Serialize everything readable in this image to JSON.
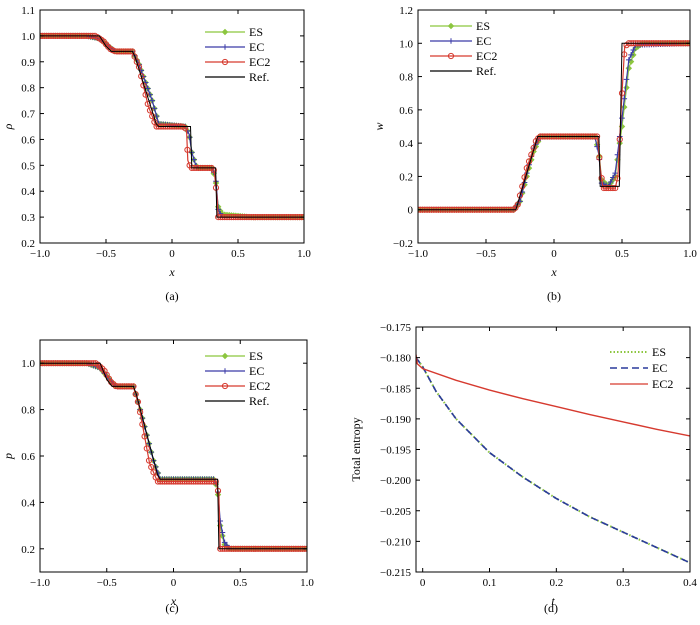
{
  "chart_data": [
    {
      "type": "line",
      "panel_label": "(a)",
      "xlabel": "x",
      "ylabel": "ρ",
      "xlim": [
        -1.0,
        1.0
      ],
      "ylim": [
        0.2,
        1.1
      ],
      "xticks": [
        -1.0,
        -0.5,
        0,
        0.5,
        1.0
      ],
      "xtick_labels": [
        "−1.0",
        "−0.5",
        "0",
        "0.5",
        "1.0"
      ],
      "yticks": [
        0.2,
        0.3,
        0.4,
        0.5,
        0.6,
        0.7,
        0.8,
        0.9,
        1.0,
        1.1
      ],
      "ytick_labels": [
        "0.2",
        "0.3",
        "0.4",
        "0.5",
        "0.6",
        "0.7",
        "0.8",
        "0.9",
        "1.0",
        "1.1"
      ],
      "legend_position": "top-right",
      "series": [
        {
          "name": "ES",
          "color": "#8cc63f",
          "marker": "diamond",
          "x": [
            -1.0,
            -0.65,
            -0.55,
            -0.48,
            -0.43,
            -0.3,
            -0.25,
            -0.15,
            -0.1,
            0.1,
            0.13,
            0.15,
            0.18,
            0.2,
            0.22,
            0.24,
            0.3,
            0.33,
            0.35,
            0.38,
            0.6,
            1.0
          ],
          "y": [
            1.0,
            1.0,
            0.99,
            0.96,
            0.94,
            0.94,
            0.89,
            0.75,
            0.66,
            0.65,
            0.62,
            0.55,
            0.5,
            0.49,
            0.49,
            0.49,
            0.49,
            0.45,
            0.34,
            0.31,
            0.3,
            0.3
          ]
        },
        {
          "name": "EC",
          "color": "#3a3aa8",
          "marker": "plus",
          "x": [
            -1.0,
            -0.65,
            -0.55,
            -0.48,
            -0.43,
            -0.3,
            -0.25,
            -0.15,
            -0.1,
            0.1,
            0.13,
            0.15,
            0.18,
            0.2,
            0.22,
            0.24,
            0.3,
            0.33,
            0.35,
            0.38,
            0.6,
            1.0
          ],
          "y": [
            1.0,
            1.0,
            0.99,
            0.96,
            0.94,
            0.94,
            0.89,
            0.75,
            0.66,
            0.65,
            0.62,
            0.55,
            0.5,
            0.49,
            0.49,
            0.49,
            0.49,
            0.46,
            0.33,
            0.3,
            0.3,
            0.3
          ]
        },
        {
          "name": "EC2",
          "color": "#d63a2f",
          "marker": "circle",
          "x": [
            -1.0,
            -0.58,
            -0.52,
            -0.47,
            -0.43,
            -0.3,
            -0.25,
            -0.18,
            -0.12,
            0.08,
            0.11,
            0.12,
            0.14,
            0.2,
            0.24,
            0.3,
            0.32,
            0.34,
            0.35,
            0.6,
            1.0
          ],
          "y": [
            1.0,
            1.0,
            0.98,
            0.95,
            0.94,
            0.94,
            0.88,
            0.73,
            0.65,
            0.65,
            0.64,
            0.52,
            0.49,
            0.49,
            0.49,
            0.49,
            0.48,
            0.38,
            0.3,
            0.3,
            0.3
          ]
        },
        {
          "name": "Ref.",
          "color": "#000000",
          "marker": "none",
          "x": [
            -1.0,
            -0.55,
            -0.5,
            -0.46,
            -0.3,
            -0.28,
            -0.12,
            -0.1,
            0.14,
            0.15,
            0.33,
            0.34,
            1.0
          ],
          "y": [
            1.0,
            1.0,
            0.96,
            0.94,
            0.94,
            0.92,
            0.66,
            0.65,
            0.65,
            0.49,
            0.49,
            0.3,
            0.3
          ]
        }
      ]
    },
    {
      "type": "line",
      "panel_label": "(b)",
      "xlabel": "x",
      "ylabel": "w",
      "xlim": [
        -1.0,
        1.0
      ],
      "ylim": [
        -0.2,
        1.2
      ],
      "xticks": [
        -1.0,
        -0.5,
        0,
        0.5,
        1.0
      ],
      "xtick_labels": [
        "−1.0",
        "−0.5",
        "0",
        "0.5",
        "1.0"
      ],
      "yticks": [
        -0.2,
        0,
        0.2,
        0.4,
        0.6,
        0.8,
        1.0,
        1.2
      ],
      "ytick_labels": [
        "−0.2",
        "0",
        "0.2",
        "0.4",
        "0.6",
        "0.8",
        "1.0",
        "1.2"
      ],
      "legend_position": "top-left",
      "series": [
        {
          "name": "ES",
          "color": "#8cc63f",
          "marker": "diamond",
          "x": [
            -1.0,
            -0.3,
            -0.25,
            -0.2,
            -0.15,
            -0.1,
            0.3,
            0.33,
            0.35,
            0.4,
            0.45,
            0.5,
            0.55,
            0.6,
            0.65,
            1.0
          ],
          "y": [
            0.0,
            0.0,
            0.05,
            0.2,
            0.35,
            0.44,
            0.44,
            0.35,
            0.18,
            0.14,
            0.2,
            0.5,
            0.85,
            0.97,
            1.0,
            1.0
          ]
        },
        {
          "name": "EC",
          "color": "#3a3aa8",
          "marker": "plus",
          "x": [
            -1.0,
            -0.3,
            -0.25,
            -0.2,
            -0.15,
            -0.1,
            0.3,
            0.33,
            0.35,
            0.4,
            0.45,
            0.5,
            0.55,
            0.6,
            1.0
          ],
          "y": [
            0.0,
            0.0,
            0.05,
            0.22,
            0.37,
            0.44,
            0.44,
            0.33,
            0.16,
            0.14,
            0.22,
            0.55,
            0.9,
            0.99,
            1.0
          ]
        },
        {
          "name": "EC2",
          "color": "#d63a2f",
          "marker": "circle",
          "x": [
            -1.0,
            -0.3,
            -0.27,
            -0.2,
            -0.13,
            -0.1,
            0.32,
            0.34,
            0.36,
            0.45,
            0.47,
            0.5,
            0.52,
            0.55,
            1.0
          ],
          "y": [
            0.0,
            0.0,
            0.02,
            0.25,
            0.42,
            0.44,
            0.44,
            0.25,
            0.13,
            0.13,
            0.2,
            0.7,
            0.98,
            1.0,
            1.0
          ]
        },
        {
          "name": "Ref.",
          "color": "#000000",
          "marker": "none",
          "x": [
            -1.0,
            -0.28,
            -0.12,
            0.33,
            0.34,
            0.48,
            0.5,
            1.0
          ],
          "y": [
            0.0,
            0.0,
            0.44,
            0.44,
            0.14,
            0.14,
            1.0,
            1.0
          ]
        }
      ]
    },
    {
      "type": "line",
      "panel_label": "(c)",
      "xlabel": "x",
      "ylabel": "p",
      "xlim": [
        -1.0,
        1.0
      ],
      "ylim": [
        0.1,
        1.1
      ],
      "xticks": [
        -1.0,
        -0.5,
        0,
        0.5,
        1.0
      ],
      "xtick_labels": [
        "−1.0",
        "−0.5",
        "0",
        "0.5",
        "1.0"
      ],
      "yticks": [
        0.2,
        0.4,
        0.6,
        0.8,
        1.0
      ],
      "ytick_labels": [
        "0.2",
        "0.4",
        "0.6",
        "0.8",
        "1.0"
      ],
      "legend_position": "top-right",
      "series": [
        {
          "name": "ES",
          "color": "#8cc63f",
          "marker": "diamond",
          "x": [
            -1.0,
            -0.65,
            -0.55,
            -0.48,
            -0.43,
            -0.3,
            -0.25,
            -0.15,
            -0.1,
            0.3,
            0.33,
            0.35,
            0.38,
            0.42,
            0.6,
            1.0
          ],
          "y": [
            1.0,
            1.0,
            0.98,
            0.93,
            0.9,
            0.9,
            0.8,
            0.58,
            0.5,
            0.5,
            0.46,
            0.3,
            0.22,
            0.2,
            0.2,
            0.2
          ]
        },
        {
          "name": "EC",
          "color": "#3a3aa8",
          "marker": "plus",
          "x": [
            -1.0,
            -0.65,
            -0.55,
            -0.48,
            -0.43,
            -0.3,
            -0.25,
            -0.15,
            -0.1,
            0.3,
            0.33,
            0.35,
            0.38,
            0.42,
            0.6,
            1.0
          ],
          "y": [
            1.0,
            1.0,
            0.98,
            0.93,
            0.9,
            0.9,
            0.8,
            0.58,
            0.5,
            0.5,
            0.47,
            0.32,
            0.23,
            0.2,
            0.2,
            0.2
          ]
        },
        {
          "name": "EC2",
          "color": "#d63a2f",
          "marker": "circle",
          "x": [
            -1.0,
            -0.58,
            -0.52,
            -0.47,
            -0.43,
            -0.3,
            -0.26,
            -0.18,
            -0.12,
            0.32,
            0.34,
            0.35,
            0.6,
            1.0
          ],
          "y": [
            1.0,
            1.0,
            0.97,
            0.92,
            0.9,
            0.9,
            0.82,
            0.57,
            0.49,
            0.49,
            0.43,
            0.2,
            0.2,
            0.2
          ]
        },
        {
          "name": "Ref.",
          "color": "#000000",
          "marker": "none",
          "x": [
            -1.0,
            -0.55,
            -0.5,
            -0.46,
            -0.3,
            -0.28,
            -0.12,
            -0.1,
            0.33,
            0.34,
            1.0
          ],
          "y": [
            1.0,
            1.0,
            0.93,
            0.9,
            0.9,
            0.87,
            0.52,
            0.5,
            0.5,
            0.2,
            0.2
          ]
        }
      ]
    },
    {
      "type": "line",
      "panel_label": "(d)",
      "xlabel": "t",
      "ylabel": "Total entropy",
      "xlim": [
        -0.01,
        0.4
      ],
      "ylim": [
        -0.215,
        -0.175
      ],
      "xticks": [
        0,
        0.1,
        0.2,
        0.3,
        0.4
      ],
      "xtick_labels": [
        "0",
        "0.1",
        "0.2",
        "0.3",
        "0.4"
      ],
      "yticks": [
        -0.215,
        -0.21,
        -0.205,
        -0.2,
        -0.195,
        -0.19,
        -0.185,
        -0.18,
        -0.175
      ],
      "ytick_labels": [
        "−0.215",
        "−0.210",
        "−0.205",
        "−0.200",
        "−0.195",
        "−0.190",
        "−0.185",
        "−0.180",
        "−0.175"
      ],
      "legend_position": "top-right",
      "series": [
        {
          "name": "ES",
          "color": "#8cc63f",
          "marker": "none",
          "dash": "dotted",
          "x": [
            -0.01,
            0,
            0.02,
            0.05,
            0.1,
            0.15,
            0.2,
            0.25,
            0.3,
            0.35,
            0.4
          ],
          "y": [
            -0.18,
            -0.1815,
            -0.1855,
            -0.19,
            -0.1955,
            -0.1995,
            -0.203,
            -0.206,
            -0.2085,
            -0.211,
            -0.2135
          ]
        },
        {
          "name": "EC",
          "color": "#2a3a9c",
          "marker": "none",
          "dash": "dashed",
          "x": [
            -0.01,
            0,
            0.02,
            0.05,
            0.1,
            0.15,
            0.2,
            0.25,
            0.3,
            0.35,
            0.4
          ],
          "y": [
            -0.18,
            -0.1815,
            -0.1855,
            -0.19,
            -0.1955,
            -0.1995,
            -0.203,
            -0.206,
            -0.2085,
            -0.211,
            -0.2135
          ]
        },
        {
          "name": "EC2",
          "color": "#d63a2f",
          "marker": "none",
          "dash": "solid",
          "x": [
            -0.01,
            -0.008,
            0,
            0.05,
            0.1,
            0.15,
            0.2,
            0.25,
            0.3,
            0.35,
            0.4
          ],
          "y": [
            -0.1795,
            -0.181,
            -0.1818,
            -0.1837,
            -0.1853,
            -0.1867,
            -0.188,
            -0.1893,
            -0.1905,
            -0.1917,
            -0.1928
          ]
        }
      ]
    }
  ]
}
